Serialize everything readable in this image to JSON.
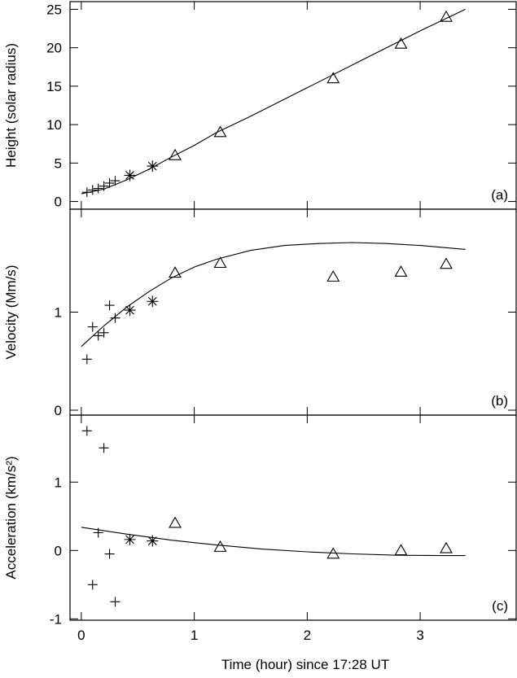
{
  "chart_data": [
    {
      "type": "scatter",
      "panel_label": "(a)",
      "ylabel": "Height (solar radius)",
      "xlabel": "",
      "xlim": [
        -0.1,
        3.85
      ],
      "ylim": [
        -1,
        26
      ],
      "yticks": [
        0,
        5,
        10,
        15,
        20,
        25
      ],
      "series": [
        {
          "marker": "plus",
          "x": [
            0.05,
            0.1,
            0.15,
            0.2,
            0.25,
            0.3
          ],
          "y": [
            1.2,
            1.5,
            1.7,
            2.0,
            2.4,
            2.7
          ]
        },
        {
          "marker": "asterisk",
          "x": [
            0.43,
            0.63
          ],
          "y": [
            3.4,
            4.6
          ]
        },
        {
          "marker": "triangle",
          "x": [
            0.83,
            1.23,
            2.23,
            2.83,
            3.23
          ],
          "y": [
            6.0,
            9.0,
            16.0,
            20.5,
            24.0
          ]
        }
      ],
      "fit": {
        "x": [
          0,
          0.2,
          0.4,
          0.6,
          0.8,
          1.0,
          1.2,
          1.5,
          2.0,
          2.5,
          3.0,
          3.4
        ],
        "y": [
          1.0,
          1.6,
          2.8,
          4.2,
          5.8,
          7.3,
          9.0,
          11.1,
          14.8,
          18.5,
          22.2,
          25.0
        ]
      }
    },
    {
      "type": "scatter",
      "panel_label": "(b)",
      "ylabel": "Velocity (Mm/s)",
      "xlabel": "",
      "xlim": [
        -0.1,
        3.85
      ],
      "ylim": [
        -0.05,
        2.05
      ],
      "yticks": [
        0,
        1
      ],
      "series": [
        {
          "marker": "plus",
          "x": [
            0.05,
            0.1,
            0.15,
            0.2,
            0.25,
            0.3
          ],
          "y": [
            0.52,
            0.85,
            0.76,
            0.79,
            1.07,
            0.94
          ]
        },
        {
          "marker": "asterisk",
          "x": [
            0.43,
            0.63
          ],
          "y": [
            1.02,
            1.11
          ]
        },
        {
          "marker": "triangle",
          "x": [
            0.83,
            1.23,
            2.23,
            2.83,
            3.23
          ],
          "y": [
            1.4,
            1.5,
            1.36,
            1.41,
            1.49
          ]
        }
      ],
      "fit": {
        "x": [
          0,
          0.2,
          0.4,
          0.6,
          0.8,
          1.0,
          1.2,
          1.5,
          1.8,
          2.1,
          2.4,
          2.7,
          3.0,
          3.4
        ],
        "y": [
          0.65,
          0.86,
          1.05,
          1.21,
          1.35,
          1.46,
          1.54,
          1.63,
          1.68,
          1.7,
          1.71,
          1.7,
          1.68,
          1.64
        ]
      }
    },
    {
      "type": "scatter",
      "panel_label": "(c)",
      "ylabel": "Acceleration (km/s²)",
      "xlabel": "Time (hour) since 17:28 UT",
      "xlim": [
        -0.1,
        3.85
      ],
      "ylim": [
        -1.02,
        1.98
      ],
      "yticks": [
        -1,
        0,
        1
      ],
      "xticks": [
        0,
        1,
        2,
        3
      ],
      "series": [
        {
          "marker": "plus",
          "x": [
            0.05,
            0.1,
            0.15,
            0.2,
            0.25,
            0.3
          ],
          "y": [
            1.75,
            -0.5,
            0.26,
            1.5,
            -0.05,
            -0.75
          ]
        },
        {
          "marker": "asterisk",
          "x": [
            0.43,
            0.63
          ],
          "y": [
            0.16,
            0.14
          ]
        },
        {
          "marker": "triangle",
          "x": [
            0.83,
            1.23,
            2.23,
            2.83,
            3.23
          ],
          "y": [
            0.4,
            0.05,
            -0.05,
            0.0,
            0.03
          ]
        }
      ],
      "fit": {
        "x": [
          0,
          0.4,
          0.8,
          1.2,
          1.6,
          2.0,
          2.4,
          2.8,
          3.2,
          3.4
        ],
        "y": [
          0.34,
          0.24,
          0.15,
          0.08,
          0.02,
          -0.02,
          -0.05,
          -0.07,
          -0.075,
          -0.075
        ]
      }
    }
  ]
}
